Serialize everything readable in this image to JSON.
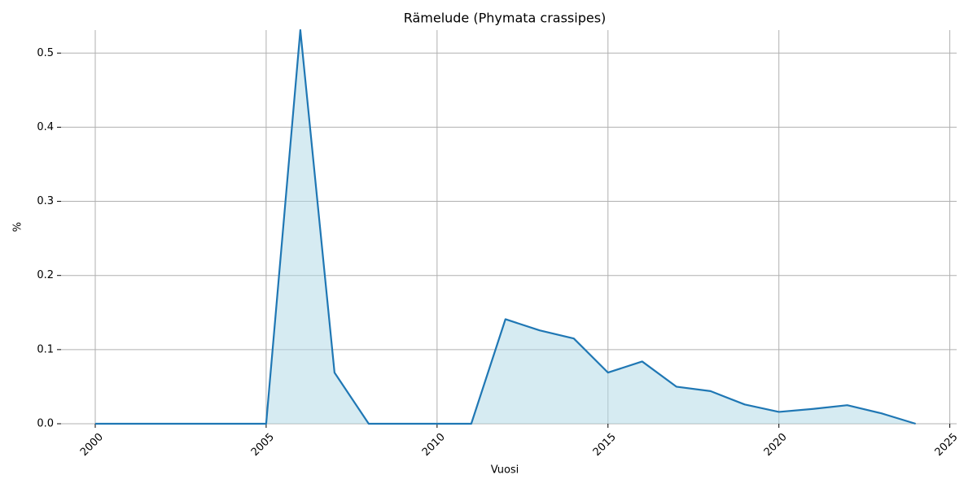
{
  "chart_data": {
    "type": "line",
    "title": "Rämelude (Phymata crassipes)",
    "x_label": "Vuosi",
    "y_label": "%",
    "x": [
      2000,
      2001,
      2002,
      2003,
      2004,
      2005,
      2006,
      2007,
      2008,
      2009,
      2010,
      2011,
      2012,
      2013,
      2014,
      2015,
      2016,
      2017,
      2018,
      2019,
      2020,
      2021,
      2022,
      2023,
      2024
    ],
    "values": [
      0,
      0,
      0,
      0,
      0,
      0,
      0.531,
      0.069,
      0,
      0,
      0,
      0,
      0.141,
      0.126,
      0.115,
      0.069,
      0.084,
      0.05,
      0.044,
      0.026,
      0.016,
      0.02,
      0.025,
      0.014,
      0
    ],
    "color": "#1f77b4",
    "fill_color": "#add8e6",
    "xlim": [
      1999,
      2025.2
    ],
    "xticks": [
      2000,
      2005,
      2010,
      2015,
      2020,
      2025
    ],
    "ylim": [
      0,
      0.531
    ],
    "yticks": [
      {
        "value": 0,
        "label": "0.0"
      },
      0.1,
      0.2,
      0.3,
      0.4,
      0.5
    ],
    "grid": true
  }
}
